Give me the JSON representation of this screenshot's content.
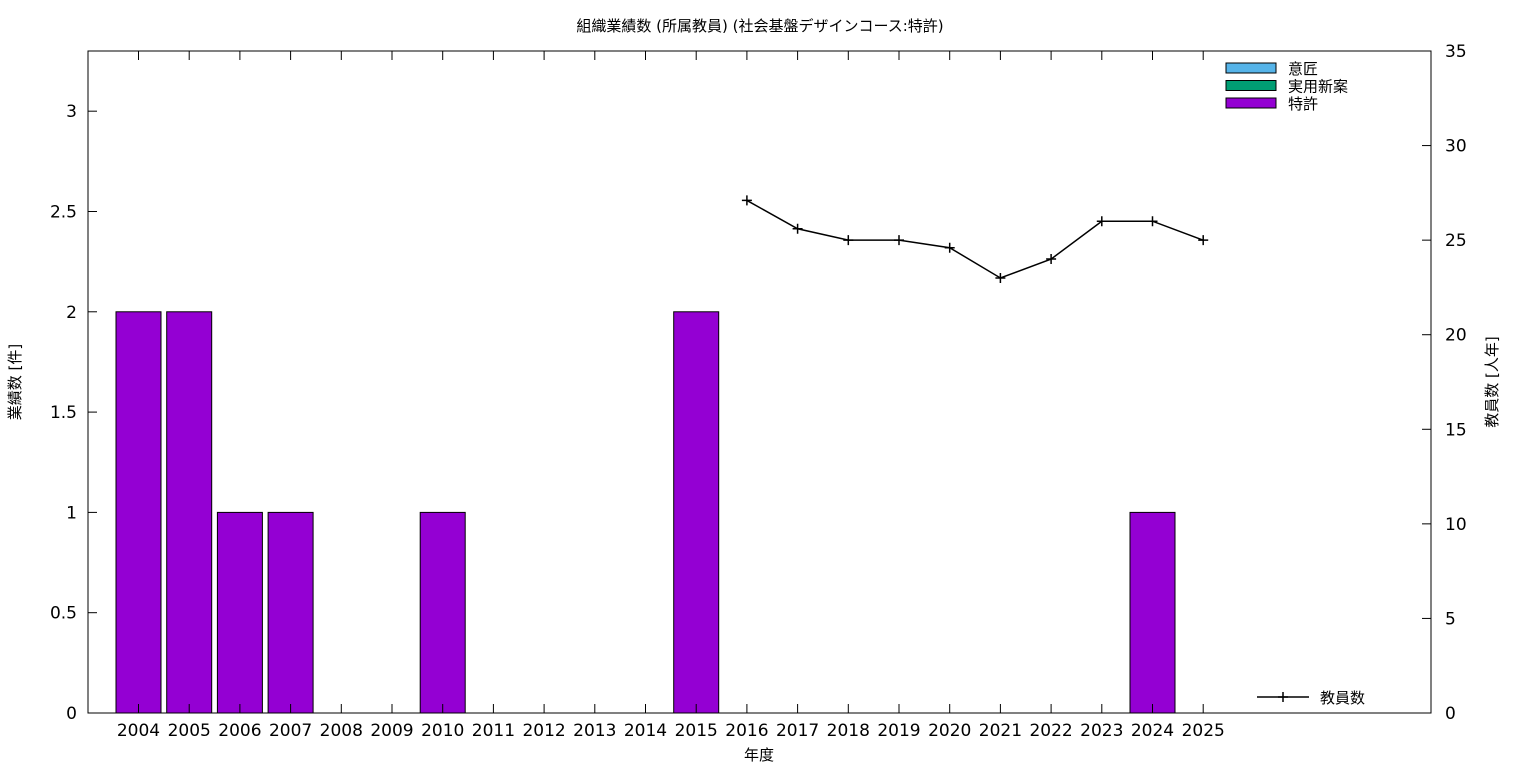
{
  "chart_data": {
    "type": "bar",
    "title": "組織業績数 (所属教員) (社会基盤デザインコース:特許)",
    "xlabel": "年度",
    "ylabel": "業績数 [件]",
    "y2label": "教員数 [人年]",
    "categories": [
      "2004",
      "2005",
      "2006",
      "2007",
      "2008",
      "2009",
      "2010",
      "2011",
      "2012",
      "2013",
      "2014",
      "2015",
      "2016",
      "2017",
      "2018",
      "2019",
      "2020",
      "2021",
      "2022",
      "2023",
      "2024",
      "2025"
    ],
    "ylim": [
      0,
      3.3
    ],
    "y2lim": [
      0,
      35
    ],
    "yticks": [
      "0",
      "0.5",
      "1",
      "1.5",
      "2",
      "2.5",
      "3"
    ],
    "y2ticks": [
      "0",
      "5",
      "10",
      "15",
      "20",
      "25",
      "30",
      "35"
    ],
    "series": [
      {
        "name": "意匠",
        "color": "#56b4e9",
        "values": [
          0,
          0,
          0,
          0,
          0,
          0,
          0,
          0,
          0,
          0,
          0,
          0,
          0,
          0,
          0,
          0,
          0,
          0,
          0,
          0,
          0,
          0
        ]
      },
      {
        "name": "実用新案",
        "color": "#009e73",
        "values": [
          0,
          0,
          0,
          0,
          0,
          0,
          0,
          0,
          0,
          0,
          0,
          0,
          0,
          0,
          0,
          0,
          0,
          0,
          0,
          0,
          0,
          0
        ]
      },
      {
        "name": "特許",
        "color": "#9400d3",
        "values": [
          2,
          2,
          1,
          1,
          0,
          0,
          1,
          0,
          0,
          0,
          0,
          2,
          0,
          0,
          0,
          0,
          0,
          0,
          0,
          0,
          1,
          0
        ]
      }
    ],
    "line_series": {
      "name": "教員数",
      "color": "#000000",
      "axis": "y2",
      "x": [
        "2016",
        "2017",
        "2018",
        "2019",
        "2020",
        "2021",
        "2022",
        "2023",
        "2024",
        "2025"
      ],
      "values": [
        27.1,
        25.6,
        25.0,
        25.0,
        24.6,
        23.0,
        24.0,
        26.0,
        26.0,
        25.0
      ]
    },
    "legend_position": "top-right",
    "line_legend_position": "bottom-right",
    "grid": false
  }
}
